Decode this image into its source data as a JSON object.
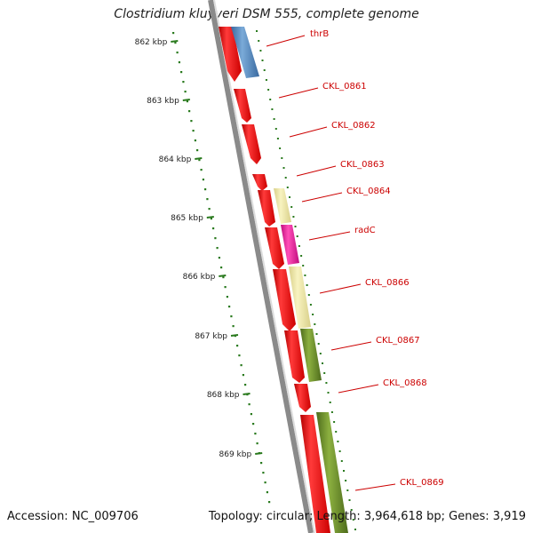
{
  "title": "Clostridium kluyveri DSM 555, complete genome",
  "footer": {
    "accession": "Accession: NC_009706",
    "topology": "Topology: circular; Length: 3,964,618 bp; Genes: 3,919"
  },
  "scale_labels": [
    "862 kbp",
    "863 kbp",
    "864 kbp",
    "865 kbp",
    "866 kbp",
    "867 kbp",
    "868 kbp",
    "869 kbp"
  ],
  "genes": [
    {
      "name": "thrB"
    },
    {
      "name": "CKL_0861"
    },
    {
      "name": "CKL_0862"
    },
    {
      "name": "CKL_0863"
    },
    {
      "name": "CKL_0864"
    },
    {
      "name": "radC"
    },
    {
      "name": "CKL_0866"
    },
    {
      "name": "CKL_0867"
    },
    {
      "name": "CKL_0868"
    },
    {
      "name": "CKL_0869"
    }
  ],
  "colors": {
    "cds": "#ee0000",
    "blue_feature": "#4a7fb8",
    "yellow_feature": "#efe8a0",
    "magenta_feature": "#e8149a",
    "green_feature": "#6a8f2a",
    "tick": "#2a7a1e",
    "label": "#cc0000",
    "backbone": "#888888"
  }
}
